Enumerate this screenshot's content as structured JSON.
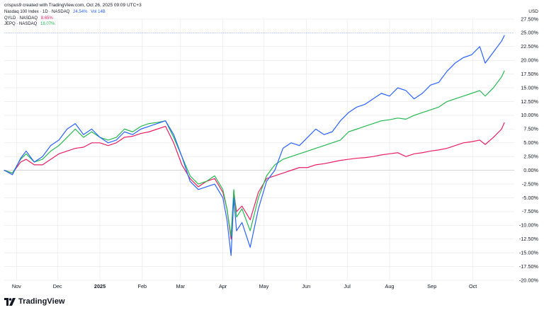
{
  "header": {
    "attribution": "crispus9 created with TradingView.com, Oct 26, 2025 09:09 UTC+3"
  },
  "legend": {
    "main": {
      "name": "Nasdaq 100 Index · 1D · NASDAQ",
      "value": "24.54%",
      "volume": "Vol 14B"
    },
    "qyld": {
      "name": "QYLD · NASDAQ",
      "value": "8.65%"
    },
    "jepq": {
      "name": "JEPQ · NASDAQ",
      "value": "18.07%"
    }
  },
  "currency": "USD",
  "footer": {
    "brand": "TradingView"
  },
  "colors": {
    "nasdaq": "#2962ff",
    "qyld": "#e91e63",
    "jepq": "#26b94f",
    "gridline": "#e6e6e6",
    "zero_line": "#c8c8c8"
  },
  "chart_data": {
    "type": "line",
    "title": "",
    "xlabel": "",
    "ylabel": "",
    "ylim": [
      -20,
      27.5
    ],
    "x_ticks": [
      "Nov",
      "Dec",
      "2025",
      "Feb",
      "Mar",
      "Apr",
      "May",
      "Jun",
      "Jul",
      "Aug",
      "Sep",
      "Oct"
    ],
    "y_ticks": [
      "27.50%",
      "25.00%",
      "22.50%",
      "20.00%",
      "17.50%",
      "15.00%",
      "12.50%",
      "10.00%",
      "7.50%",
      "5.00%",
      "2.50%",
      "0.00%",
      "-2.50%",
      "-5.00%",
      "-7.50%",
      "-10.00%",
      "-12.50%",
      "-15.00%",
      "-17.50%",
      "-20.00%"
    ],
    "x_dates": [
      "2024-10-23",
      "2024-10-29",
      "2024-11-04",
      "2024-11-08",
      "2024-11-14",
      "2024-11-20",
      "2024-11-26",
      "2024-12-02",
      "2024-12-08",
      "2024-12-14",
      "2024-12-20",
      "2024-12-26",
      "2025-01-01",
      "2025-01-07",
      "2025-01-13",
      "2025-01-19",
      "2025-01-25",
      "2025-01-31",
      "2025-02-06",
      "2025-02-12",
      "2025-02-18",
      "2025-02-24",
      "2025-03-02",
      "2025-03-08",
      "2025-03-14",
      "2025-03-20",
      "2025-03-26",
      "2025-04-01",
      "2025-04-04",
      "2025-04-07",
      "2025-04-09",
      "2025-04-11",
      "2025-04-15",
      "2025-04-21",
      "2025-04-27",
      "2025-05-03",
      "2025-05-09",
      "2025-05-15",
      "2025-05-21",
      "2025-05-27",
      "2025-06-02",
      "2025-06-08",
      "2025-06-14",
      "2025-06-20",
      "2025-06-26",
      "2025-07-02",
      "2025-07-08",
      "2025-07-14",
      "2025-07-20",
      "2025-07-26",
      "2025-08-01",
      "2025-08-07",
      "2025-08-13",
      "2025-08-19",
      "2025-08-25",
      "2025-08-31",
      "2025-09-06",
      "2025-09-12",
      "2025-09-18",
      "2025-09-24",
      "2025-09-30",
      "2025-10-06",
      "2025-10-10",
      "2025-10-16",
      "2025-10-22",
      "2025-10-24"
    ],
    "series": [
      {
        "name": "Nasdaq 100 Index",
        "values": [
          0.0,
          -0.8,
          2.2,
          3.5,
          1.5,
          2.5,
          4.5,
          5.5,
          7.5,
          8.5,
          6.5,
          7.5,
          6.0,
          5.0,
          5.5,
          7.0,
          6.5,
          7.5,
          8.0,
          8.5,
          9.0,
          6.5,
          2.5,
          -2.0,
          -3.5,
          -3.0,
          -2.5,
          -5.0,
          -9.0,
          -15.5,
          -5.0,
          -11.0,
          -9.5,
          -14.0,
          -7.0,
          -2.0,
          0.0,
          4.0,
          5.0,
          4.5,
          6.0,
          7.5,
          6.5,
          7.0,
          9.0,
          10.5,
          11.5,
          12.0,
          13.0,
          14.0,
          13.5,
          15.0,
          14.5,
          13.0,
          14.0,
          15.5,
          16.0,
          18.0,
          19.5,
          20.5,
          21.0,
          22.5,
          19.5,
          21.5,
          23.5,
          24.5
        ]
      },
      {
        "name": "QYLD",
        "values": [
          0.0,
          -0.5,
          1.5,
          2.0,
          1.0,
          1.0,
          2.0,
          3.0,
          3.5,
          4.0,
          4.2,
          5.0,
          5.0,
          4.5,
          5.0,
          6.0,
          6.2,
          6.7,
          7.0,
          7.5,
          8.0,
          5.0,
          1.0,
          -1.5,
          -3.0,
          -2.0,
          -1.5,
          -4.0,
          -7.0,
          -12.5,
          -4.0,
          -7.5,
          -6.5,
          -9.0,
          -4.0,
          -1.5,
          -1.0,
          -0.5,
          0.0,
          0.5,
          0.5,
          1.0,
          1.2,
          1.5,
          1.8,
          2.0,
          2.2,
          2.3,
          2.5,
          2.8,
          3.0,
          3.2,
          2.5,
          3.0,
          3.2,
          3.5,
          3.7,
          4.0,
          4.5,
          5.0,
          5.2,
          5.5,
          4.7,
          6.0,
          7.5,
          8.65
        ]
      },
      {
        "name": "JEPQ",
        "values": [
          0.0,
          -0.5,
          2.0,
          3.0,
          1.5,
          2.0,
          3.5,
          4.5,
          6.0,
          7.5,
          6.0,
          7.0,
          6.0,
          5.5,
          6.0,
          7.5,
          7.0,
          8.0,
          8.5,
          8.7,
          9.0,
          6.0,
          2.5,
          -1.0,
          -2.5,
          -2.0,
          -1.0,
          -3.5,
          -7.0,
          -12.0,
          -3.5,
          -8.5,
          -7.0,
          -11.0,
          -5.0,
          -1.0,
          1.0,
          2.0,
          2.5,
          3.0,
          3.5,
          4.0,
          4.5,
          5.0,
          5.5,
          7.0,
          7.5,
          8.0,
          8.5,
          9.0,
          9.2,
          9.5,
          9.3,
          10.0,
          10.5,
          11.0,
          11.5,
          12.5,
          13.0,
          13.5,
          14.0,
          14.5,
          13.5,
          15.0,
          17.0,
          18.07
        ]
      }
    ]
  }
}
